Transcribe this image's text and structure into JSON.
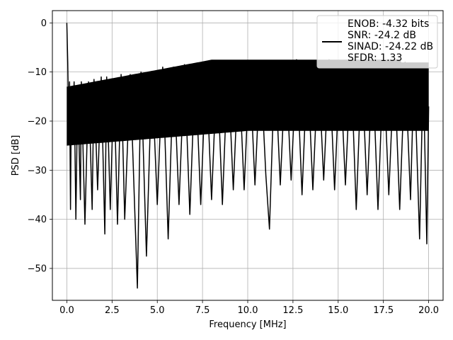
{
  "chart_data": {
    "type": "line",
    "xlabel": "Frequency [MHz]",
    "ylabel": "PSD [dB]",
    "xlim": [
      -0.8,
      20.8
    ],
    "ylim": [
      -56.5,
      2.5
    ],
    "xticks": [
      0.0,
      2.5,
      5.0,
      7.5,
      10.0,
      12.5,
      15.0,
      17.5,
      20.0
    ],
    "xtick_labels": [
      "0.0",
      "2.5",
      "5.0",
      "7.5",
      "10.0",
      "12.5",
      "15.0",
      "17.5",
      "20.0"
    ],
    "yticks": [
      0,
      -10,
      -20,
      -30,
      -40,
      -50
    ],
    "ytick_labels": [
      "0",
      "−10",
      "−20",
      "−30",
      "−40",
      "−50"
    ],
    "grid": true,
    "legend_position": "top-right",
    "series_color": "#000000",
    "series": [
      {
        "name": "ENOB: -4.32 bits\nSNR: -24.2 dB\nSINAD: -24.22 dB\nSFDR: 1.33",
        "name_lines": [
          "ENOB: -4.32 bits",
          "SNR: -24.2 dB",
          "SINAD: -24.22 dB",
          "SFDR: 1.33"
        ],
        "x": [
          0.0,
          0.05,
          0.1,
          0.15,
          0.2,
          0.25,
          0.3,
          0.4,
          0.5,
          0.6,
          0.75,
          0.8,
          1.0,
          1.2,
          1.4,
          1.5,
          1.7,
          1.9,
          2.1,
          2.2,
          2.4,
          2.6,
          2.8,
          3.0,
          3.2,
          3.5,
          3.9,
          4.1,
          4.4,
          4.7,
          5.0,
          5.3,
          5.6,
          5.9,
          6.2,
          6.5,
          6.8,
          7.1,
          7.4,
          7.7,
          8.0,
          8.3,
          8.6,
          8.9,
          9.2,
          9.5,
          9.8,
          10.1,
          10.4,
          10.7,
          11.0,
          11.2,
          11.5,
          11.8,
          12.1,
          12.4,
          12.7,
          13.0,
          13.3,
          13.6,
          13.9,
          14.2,
          14.5,
          14.8,
          15.1,
          15.4,
          15.7,
          16.0,
          16.3,
          16.6,
          16.9,
          17.2,
          17.5,
          17.8,
          18.1,
          18.4,
          18.7,
          19.0,
          19.2,
          19.5,
          19.7,
          19.9,
          20.0
        ],
        "y": [
          0.0,
          -8.0,
          -20.0,
          -12.0,
          -38.0,
          -15.0,
          -24.0,
          -12.0,
          -40.0,
          -13.0,
          -36.0,
          -12.0,
          -41.0,
          -12.0,
          -38.0,
          -11.5,
          -34.0,
          -11.0,
          -43.0,
          -11.0,
          -38.0,
          -11.5,
          -41.0,
          -10.5,
          -40.0,
          -10.5,
          -54.0,
          -10.0,
          -47.5,
          -10.0,
          -37.0,
          -9.0,
          -44.0,
          -9.0,
          -37.0,
          -8.5,
          -39.0,
          -8.5,
          -37.0,
          -8.5,
          -36.0,
          -8.5,
          -37.0,
          -8.0,
          -34.0,
          -8.0,
          -34.0,
          -8.0,
          -33.0,
          -8.0,
          -31.0,
          -42.0,
          -8.0,
          -33.0,
          -8.0,
          -32.0,
          -7.5,
          -35.0,
          -8.0,
          -34.0,
          -8.0,
          -32.0,
          -7.5,
          -34.0,
          -8.0,
          -33.0,
          -7.5,
          -38.0,
          -8.0,
          -35.0,
          -8.0,
          -38.0,
          -8.0,
          -35.0,
          -8.0,
          -38.0,
          -8.0,
          -36.0,
          -8.5,
          -44.0,
          -9.0,
          -45.0,
          -17.0
        ]
      }
    ]
  }
}
